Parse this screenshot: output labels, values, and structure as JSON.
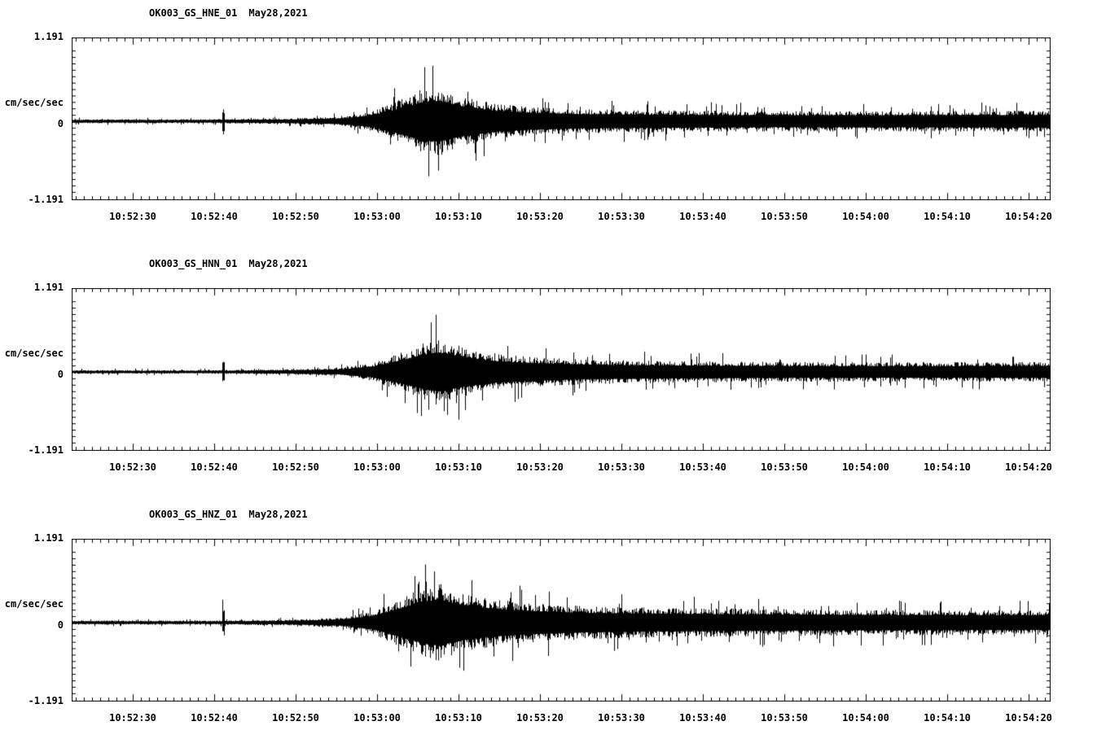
{
  "page": {
    "background": "#ffffff",
    "trace_color": "#000000"
  },
  "chart_data": [
    {
      "type": "line",
      "subtype": "seismogram",
      "title": "OK003_GS_HNE_01",
      "date": "May28,2021",
      "ylabel": "cm/sec/sec",
      "ylim": [
        -1.191,
        1.191
      ],
      "ytick_labels": [
        "1.191",
        "0",
        "-1.191"
      ],
      "xtick_labels": [
        "10:52:30",
        "10:52:40",
        "10:52:50",
        "10:53:00",
        "10:53:10",
        "10:53:20",
        "10:53:30",
        "10:53:40",
        "10:53:50",
        "10:54:00",
        "10:54:10",
        "10:54:20"
      ],
      "x_range_seconds": 120.2,
      "x_major_tick_seconds": 10,
      "x_minor_tick_seconds": 1,
      "grid": false,
      "legend": false,
      "seed": 101,
      "spike": {
        "t": 18.6,
        "a": 0.3
      },
      "envelope": {
        "t": [
          0,
          17,
          26,
          33,
          37,
          40,
          43,
          45,
          48,
          52,
          57,
          63,
          72,
          85,
          100,
          120
        ],
        "a": [
          0.045,
          0.045,
          0.06,
          0.1,
          0.22,
          0.45,
          0.7,
          0.75,
          0.55,
          0.38,
          0.3,
          0.26,
          0.24,
          0.22,
          0.22,
          0.23
        ]
      }
    },
    {
      "type": "line",
      "subtype": "seismogram",
      "title": "OK003_GS_HNN_01",
      "date": "May28,2021",
      "ylabel": "cm/sec/sec",
      "ylim": [
        -1.191,
        1.191
      ],
      "ytick_labels": [
        "1.191",
        "0",
        "-1.191"
      ],
      "xtick_labels": [
        "10:52:30",
        "10:52:40",
        "10:52:50",
        "10:53:00",
        "10:53:10",
        "10:53:20",
        "10:53:30",
        "10:53:40",
        "10:53:50",
        "10:54:00",
        "10:54:10",
        "10:54:20"
      ],
      "x_range_seconds": 120.2,
      "x_major_tick_seconds": 10,
      "x_minor_tick_seconds": 1,
      "grid": false,
      "legend": false,
      "seed": 202,
      "spike": {
        "t": 18.6,
        "a": 0.3
      },
      "envelope": {
        "t": [
          0,
          17,
          26,
          33,
          37,
          40,
          43,
          45,
          48,
          52,
          57,
          63,
          72,
          85,
          100,
          120
        ],
        "a": [
          0.04,
          0.04,
          0.055,
          0.09,
          0.2,
          0.4,
          0.62,
          0.72,
          0.55,
          0.4,
          0.32,
          0.27,
          0.24,
          0.22,
          0.21,
          0.22
        ]
      }
    },
    {
      "type": "line",
      "subtype": "seismogram",
      "title": "OK003_GS_HNZ_01",
      "date": "May28,2021",
      "ylabel": "cm/sec/sec",
      "ylim": [
        -1.191,
        1.191
      ],
      "ytick_labels": [
        "1.191",
        "0",
        "-1.191"
      ],
      "xtick_labels": [
        "10:52:30",
        "10:52:40",
        "10:52:50",
        "10:53:00",
        "10:53:10",
        "10:53:20",
        "10:53:30",
        "10:53:40",
        "10:53:50",
        "10:54:00",
        "10:54:10",
        "10:54:20"
      ],
      "x_range_seconds": 120.2,
      "x_major_tick_seconds": 10,
      "x_minor_tick_seconds": 1,
      "grid": false,
      "legend": false,
      "seed": 303,
      "spike": {
        "t": 18.6,
        "a": 0.32
      },
      "envelope": {
        "t": [
          0,
          17,
          26,
          33,
          37,
          40,
          43,
          45,
          48,
          52,
          57,
          63,
          72,
          85,
          100,
          120
        ],
        "a": [
          0.045,
          0.045,
          0.06,
          0.11,
          0.25,
          0.5,
          0.75,
          0.85,
          0.65,
          0.5,
          0.42,
          0.36,
          0.32,
          0.3,
          0.28,
          0.27
        ]
      }
    }
  ]
}
